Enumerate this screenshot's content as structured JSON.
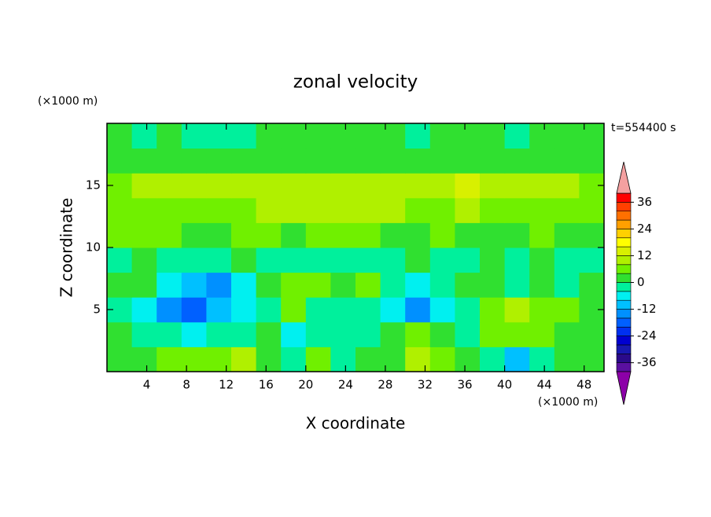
{
  "chart_data": {
    "type": "contour",
    "title": "zonal velocity",
    "xlabel": "X coordinate",
    "ylabel": "Z coordinate",
    "xunit": "(×1000 m)",
    "yunit": "(×1000 m)",
    "annotation": "t=554400 s",
    "xlim": [
      0,
      50
    ],
    "ylim": [
      0,
      20
    ],
    "xticks": [
      4,
      8,
      12,
      16,
      20,
      24,
      28,
      32,
      36,
      40,
      44,
      48
    ],
    "yticks": [
      5,
      10,
      15
    ],
    "x": [
      1.25,
      3.75,
      6.25,
      8.75,
      11.25,
      13.75,
      16.25,
      18.75,
      21.25,
      23.75,
      26.25,
      28.75,
      31.25,
      33.75,
      36.25,
      38.75,
      41.25,
      43.75,
      46.25,
      48.75
    ],
    "y": [
      1,
      3,
      5,
      7,
      9,
      11,
      13,
      15,
      17,
      19
    ],
    "values": [
      [
        2,
        2,
        6,
        6,
        6,
        9,
        2,
        -2,
        5,
        -2,
        2,
        2,
        9,
        5,
        2,
        -2,
        -10,
        -2,
        2,
        2
      ],
      [
        2,
        -3,
        -3,
        -5,
        -3,
        -2,
        2,
        -6,
        -3,
        -2,
        -2,
        2,
        6,
        2,
        -2,
        6,
        6,
        6,
        2,
        2
      ],
      [
        -2,
        -6,
        -14,
        -18,
        -10,
        -6,
        -2,
        6,
        -2,
        -2,
        -2,
        -6,
        -14,
        -6,
        -2,
        6,
        9,
        6,
        6,
        2
      ],
      [
        2,
        2,
        -6,
        -10,
        -14,
        -6,
        2,
        6,
        6,
        2,
        6,
        -2,
        -6,
        -2,
        2,
        2,
        -2,
        2,
        -2,
        2
      ],
      [
        -2,
        2,
        -2,
        -2,
        -2,
        2,
        -2,
        -2,
        -2,
        -2,
        -2,
        -2,
        2,
        -2,
        -2,
        2,
        -2,
        2,
        -2,
        -2
      ],
      [
        6,
        6,
        6,
        2,
        2,
        6,
        6,
        2,
        6,
        6,
        6,
        2,
        2,
        6,
        2,
        2,
        2,
        6,
        2,
        2
      ],
      [
        6,
        6,
        6,
        6,
        6,
        6,
        9,
        9,
        9,
        9,
        9,
        9,
        6,
        6,
        9,
        6,
        6,
        6,
        6,
        6
      ],
      [
        6,
        9,
        9,
        9,
        9,
        9,
        9,
        10,
        10,
        10,
        10,
        10,
        10,
        10,
        14,
        10,
        9,
        9,
        9,
        6
      ],
      [
        2,
        2,
        2,
        2,
        2,
        2,
        2,
        2,
        2,
        2,
        2,
        2,
        2,
        2,
        2,
        2,
        2,
        2,
        2,
        2
      ],
      [
        2,
        -2,
        2,
        -2,
        -2,
        -2,
        2,
        2,
        2,
        2,
        2,
        2,
        -2,
        2,
        2,
        2,
        -2,
        2,
        2,
        2
      ]
    ],
    "levels": [
      -40,
      -36,
      -32,
      -28,
      -24,
      -20,
      -16,
      -12,
      -8,
      -4,
      0,
      4,
      8,
      12,
      16,
      20,
      24,
      28,
      32,
      36,
      40
    ],
    "colors": [
      "#5a10a0",
      "#2a0a8a",
      "#1818b0",
      "#0000d0",
      "#0030f0",
      "#0060ff",
      "#0090ff",
      "#00c0ff",
      "#00f0f0",
      "#00f09c",
      "#30e030",
      "#70f000",
      "#b0f000",
      "#d8f000",
      "#ffff00",
      "#ffd000",
      "#ffa000",
      "#ff7000",
      "#ff4000",
      "#ff0000"
    ],
    "under_color": "#8c00a8",
    "over_color": "#f4a0a0",
    "colorbar_ticks": [
      -36,
      -24,
      -12,
      0,
      12,
      24,
      36
    ]
  }
}
